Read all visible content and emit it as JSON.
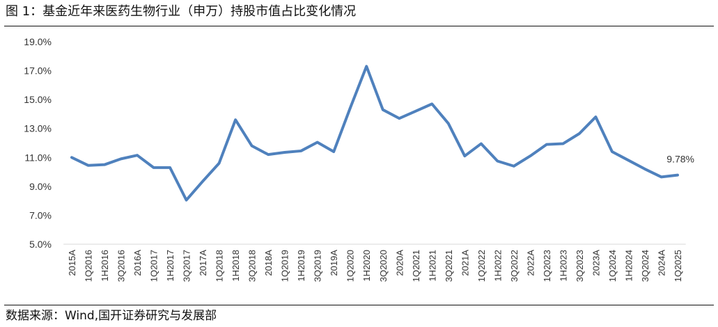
{
  "figure": {
    "title": "图 1：基金近年来医药生物行业（申万）持股市值占比变化情况",
    "source": "数据来源：Wind,国开证券研究与发展部"
  },
  "chart_data": {
    "type": "line",
    "title": "",
    "xlabel": "",
    "ylabel": "",
    "ylim": [
      5.0,
      19.0
    ],
    "yticks": [
      "5.0%",
      "7.0%",
      "9.0%",
      "11.0%",
      "13.0%",
      "15.0%",
      "17.0%",
      "19.0%"
    ],
    "grid": false,
    "legend": "none",
    "line_color": "#4f81bd",
    "categories": [
      "2015A",
      "1Q2016",
      "1H2016",
      "3Q2016",
      "2016A",
      "1Q2017",
      "1H2017",
      "3Q2017",
      "2017A",
      "1Q2018",
      "1H2018",
      "3Q2018",
      "2018A",
      "1Q2019",
      "1H2019",
      "3Q2019",
      "2019A",
      "1Q2020",
      "1H2020",
      "3Q2020",
      "2020A",
      "1Q2021",
      "1H2021",
      "3Q2021",
      "2021A",
      "1Q2022",
      "1H2022",
      "3Q2022",
      "2022A",
      "1Q2023",
      "1H2023",
      "3Q2023",
      "2023A",
      "1Q2024",
      "1H2024",
      "3Q2024",
      "2024A",
      "1Q2025"
    ],
    "series": [
      {
        "name": "",
        "values": [
          11.0,
          10.45,
          10.5,
          10.9,
          11.15,
          10.3,
          10.3,
          8.05,
          9.35,
          10.6,
          13.6,
          11.8,
          11.2,
          11.35,
          11.45,
          12.05,
          11.4,
          14.4,
          17.3,
          14.3,
          13.7,
          14.2,
          14.7,
          13.35,
          11.1,
          11.95,
          10.75,
          10.4,
          11.1,
          11.9,
          11.95,
          12.65,
          13.8,
          11.4,
          10.8,
          10.2,
          9.65,
          9.78
        ]
      }
    ],
    "annotations": [
      {
        "category": "1Q2025",
        "value": 9.78,
        "label": "9.78%"
      }
    ]
  }
}
